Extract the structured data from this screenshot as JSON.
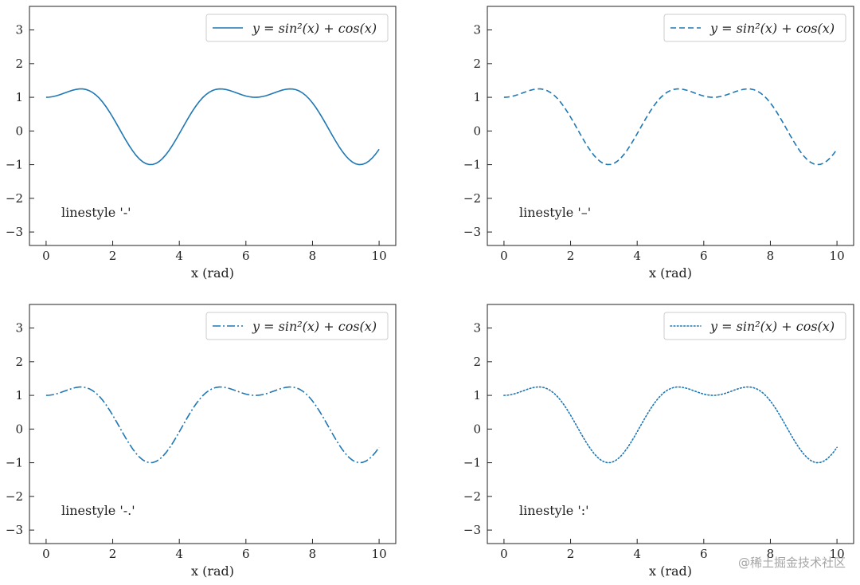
{
  "chart_data": [
    {
      "type": "line",
      "panel": "top-left",
      "legend": {
        "label": "y = sin²(x) + cos(x)",
        "placement": "top-right"
      },
      "annotation": "linestyle '-'",
      "linestyle": "solid",
      "color": "#1f77b4",
      "xlabel": "x (rad)",
      "xlim": [
        -0.5,
        10.5
      ],
      "ylim": [
        -3.4,
        3.7
      ],
      "xticks": [
        0,
        2,
        4,
        6,
        8,
        10
      ],
      "yticks": [
        -3,
        -2,
        -1,
        0,
        1,
        2,
        3
      ],
      "xtick_labels": [
        "0",
        "2",
        "4",
        "6",
        "8",
        "10"
      ],
      "ytick_labels": [
        "−3",
        "−2",
        "−1",
        "0",
        "1",
        "2",
        "3"
      ],
      "series": [
        {
          "name": "y = sin²(x) + cos(x)",
          "x_start": 0,
          "x_end": 10,
          "samples": 101,
          "y_at_selected_x": {
            "0": 1.0,
            "1": 1.25,
            "2": 0.41,
            "3": -0.97,
            "4": -0.08,
            "5": 1.2,
            "6": 1.04,
            "7": 1.19,
            "8": 0.83,
            "9": -0.74,
            "10": -0.54
          }
        }
      ],
      "grid": false
    },
    {
      "type": "line",
      "panel": "top-right",
      "legend": {
        "label": "y = sin²(x) + cos(x)",
        "placement": "top-right"
      },
      "annotation": "linestyle '–'",
      "linestyle": "dashed",
      "color": "#1f77b4",
      "xlabel": "x (rad)",
      "xlim": [
        -0.5,
        10.5
      ],
      "ylim": [
        -3.4,
        3.7
      ],
      "xticks": [
        0,
        2,
        4,
        6,
        8,
        10
      ],
      "yticks": [
        -3,
        -2,
        -1,
        0,
        1,
        2,
        3
      ],
      "xtick_labels": [
        "0",
        "2",
        "4",
        "6",
        "8",
        "10"
      ],
      "ytick_labels": [
        "−3",
        "−2",
        "−1",
        "0",
        "1",
        "2",
        "3"
      ],
      "series": [
        {
          "name": "y = sin²(x) + cos(x)",
          "x_start": 0,
          "x_end": 10,
          "samples": 101,
          "y_at_selected_x": {
            "0": 1.0,
            "1": 1.25,
            "2": 0.41,
            "3": -0.97,
            "4": -0.08,
            "5": 1.2,
            "6": 1.04,
            "7": 1.19,
            "8": 0.83,
            "9": -0.74,
            "10": -0.54
          }
        }
      ],
      "grid": false
    },
    {
      "type": "line",
      "panel": "bottom-left",
      "legend": {
        "label": "y = sin²(x) + cos(x)",
        "placement": "top-right"
      },
      "annotation": "linestyle '-.'",
      "linestyle": "dashdot",
      "color": "#1f77b4",
      "xlabel": "x (rad)",
      "xlim": [
        -0.5,
        10.5
      ],
      "ylim": [
        -3.4,
        3.7
      ],
      "xticks": [
        0,
        2,
        4,
        6,
        8,
        10
      ],
      "yticks": [
        -3,
        -2,
        -1,
        0,
        1,
        2,
        3
      ],
      "xtick_labels": [
        "0",
        "2",
        "4",
        "6",
        "8",
        "10"
      ],
      "ytick_labels": [
        "−3",
        "−2",
        "−1",
        "0",
        "1",
        "2",
        "3"
      ],
      "series": [
        {
          "name": "y = sin²(x) + cos(x)",
          "x_start": 0,
          "x_end": 10,
          "samples": 101,
          "y_at_selected_x": {
            "0": 1.0,
            "1": 1.25,
            "2": 0.41,
            "3": -0.97,
            "4": -0.08,
            "5": 1.2,
            "6": 1.04,
            "7": 1.19,
            "8": 0.83,
            "9": -0.74,
            "10": -0.54
          }
        }
      ],
      "grid": false
    },
    {
      "type": "line",
      "panel": "bottom-right",
      "legend": {
        "label": "y = sin²(x) + cos(x)",
        "placement": "top-right"
      },
      "annotation": "linestyle ':'",
      "linestyle": "dotted",
      "color": "#1f77b4",
      "xlabel": "x (rad)",
      "xlim": [
        -0.5,
        10.5
      ],
      "ylim": [
        -3.4,
        3.7
      ],
      "xticks": [
        0,
        2,
        4,
        6,
        8,
        10
      ],
      "yticks": [
        -3,
        -2,
        -1,
        0,
        1,
        2,
        3
      ],
      "xtick_labels": [
        "0",
        "2",
        "4",
        "6",
        "8",
        "10"
      ],
      "ytick_labels": [
        "−3",
        "−2",
        "−1",
        "0",
        "1",
        "2",
        "3"
      ],
      "series": [
        {
          "name": "y = sin²(x) + cos(x)",
          "x_start": 0,
          "x_end": 10,
          "samples": 101,
          "y_at_selected_x": {
            "0": 1.0,
            "1": 1.25,
            "2": 0.41,
            "3": -0.97,
            "4": -0.08,
            "5": 1.2,
            "6": 1.04,
            "7": 1.19,
            "8": 0.83,
            "9": -0.74,
            "10": -0.54
          }
        }
      ],
      "grid": false
    }
  ],
  "watermark": "@稀土掘金技术社区"
}
